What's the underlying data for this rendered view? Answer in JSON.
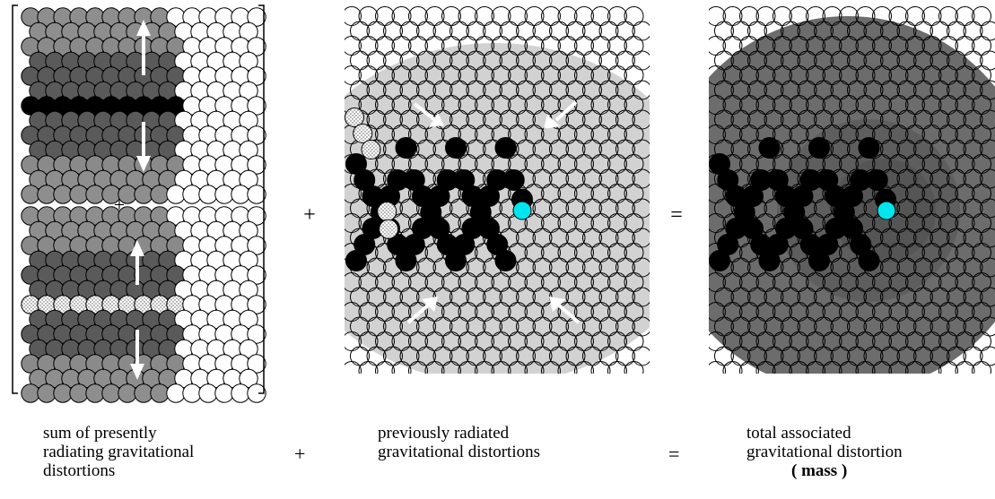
{
  "panels": {
    "left_inner_plus": "+",
    "between_1": "+",
    "between_2": "="
  },
  "captions": {
    "left": [
      "sum of presently",
      "radiating gravitational",
      "distortions"
    ],
    "middle": [
      "previously radiated",
      "gravitational distortions"
    ],
    "right": [
      "total associated",
      "gravitational distortion",
      "( mass )"
    ],
    "op_plus": "+",
    "op_equals": "="
  },
  "colors": {
    "cyan": "#00e5ee",
    "black": "#000000",
    "dark_gray": "#5a5a5a",
    "mid_gray": "#8a8a8a",
    "light_gray": "#cfcfcf",
    "field_gray": "#d4d4d4"
  }
}
